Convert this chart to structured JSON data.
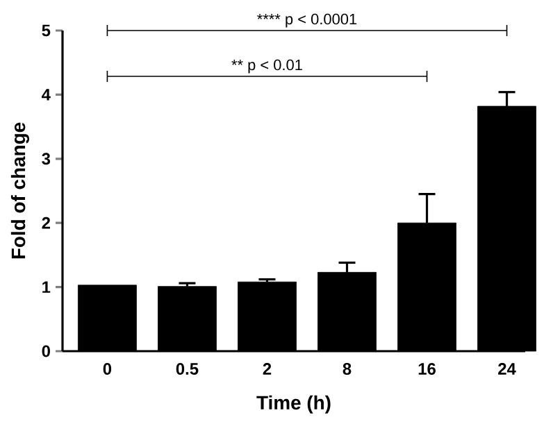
{
  "chart_data": {
    "type": "bar",
    "xlabel": "Time (h)",
    "ylabel": "Fold of change",
    "categories": [
      "0",
      "0.5",
      "2",
      "8",
      "16",
      "24"
    ],
    "values": [
      1.03,
      1.01,
      1.08,
      1.23,
      2.0,
      3.82
    ],
    "errors": [
      null,
      0.05,
      0.04,
      0.15,
      0.45,
      0.22
    ],
    "color": "#000000",
    "ylim": [
      0,
      5
    ],
    "yticks": [
      0,
      1,
      2,
      3,
      4,
      5
    ],
    "annotations": [
      "**** p < 0.0001",
      "** p < 0.01"
    ]
  }
}
